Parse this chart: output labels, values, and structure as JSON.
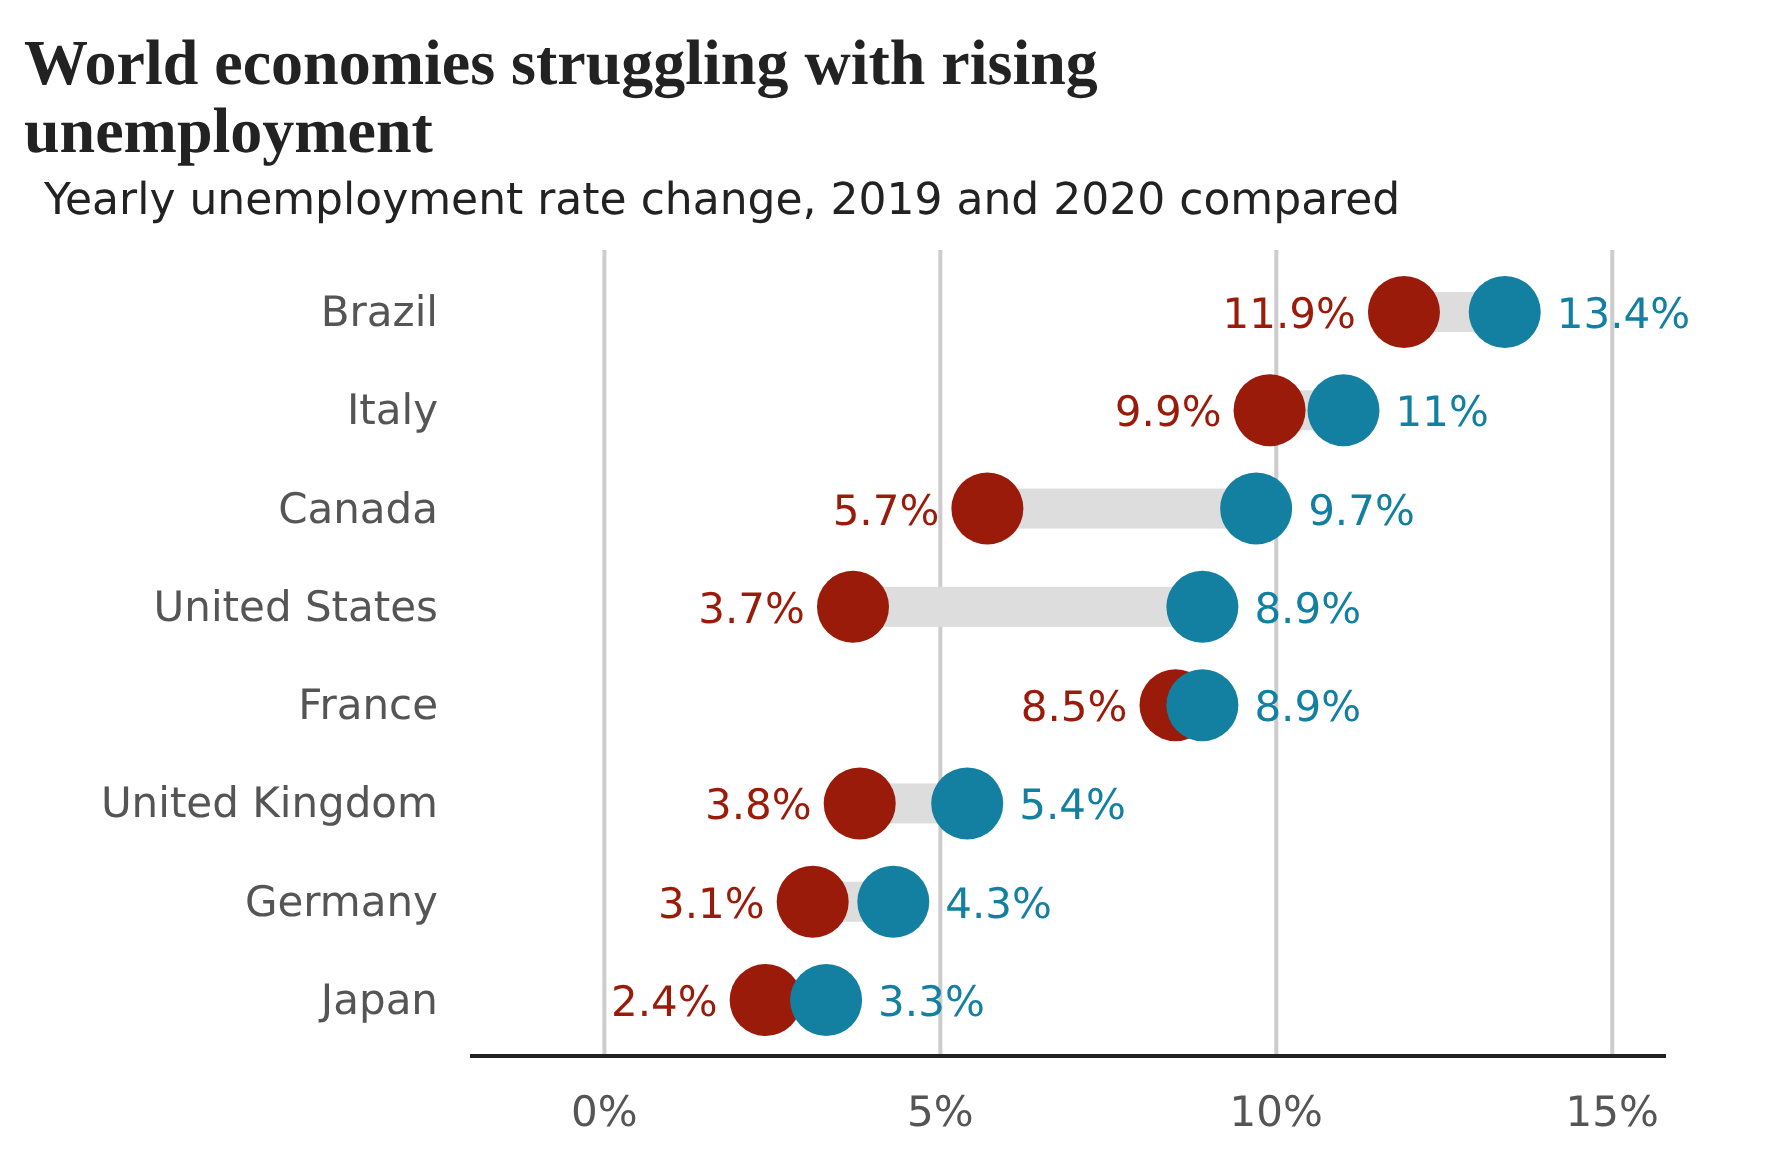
{
  "chart_data": {
    "type": "scatter",
    "orientation": "horizontal",
    "title": "World economies struggling with rising unemployment",
    "subtitle": "Yearly unemployment rate change, 2019 and 2020 compared",
    "categories": [
      "Brazil",
      "Italy",
      "Canada",
      "United States",
      "France",
      "United Kingdom",
      "Germany",
      "Japan"
    ],
    "series": [
      {
        "color": "#9b1b0a",
        "values": [
          11.9,
          9.9,
          5.7,
          3.7,
          8.5,
          3.8,
          3.1,
          2.4
        ],
        "value_labels": [
          "11.9%",
          "9.9%",
          "5.7%",
          "3.7%",
          "8.5%",
          "3.8%",
          "3.1%",
          "2.4%"
        ]
      },
      {
        "color": "#1380a1",
        "values": [
          13.4,
          11,
          9.7,
          8.9,
          8.9,
          5.4,
          4.3,
          3.3
        ],
        "value_labels": [
          "13.4%",
          "11%",
          "9.7%",
          "8.9%",
          "8.9%",
          "5.4%",
          "4.3%",
          "3.3%"
        ]
      }
    ],
    "xlim": [
      -2,
      15.8
    ],
    "xticks": [
      {
        "value": 0,
        "label": "0%"
      },
      {
        "value": 5,
        "label": "5%"
      },
      {
        "value": 10,
        "label": "10%"
      },
      {
        "value": 15,
        "label": "15%"
      }
    ],
    "grid": "x",
    "marker": "circle"
  }
}
